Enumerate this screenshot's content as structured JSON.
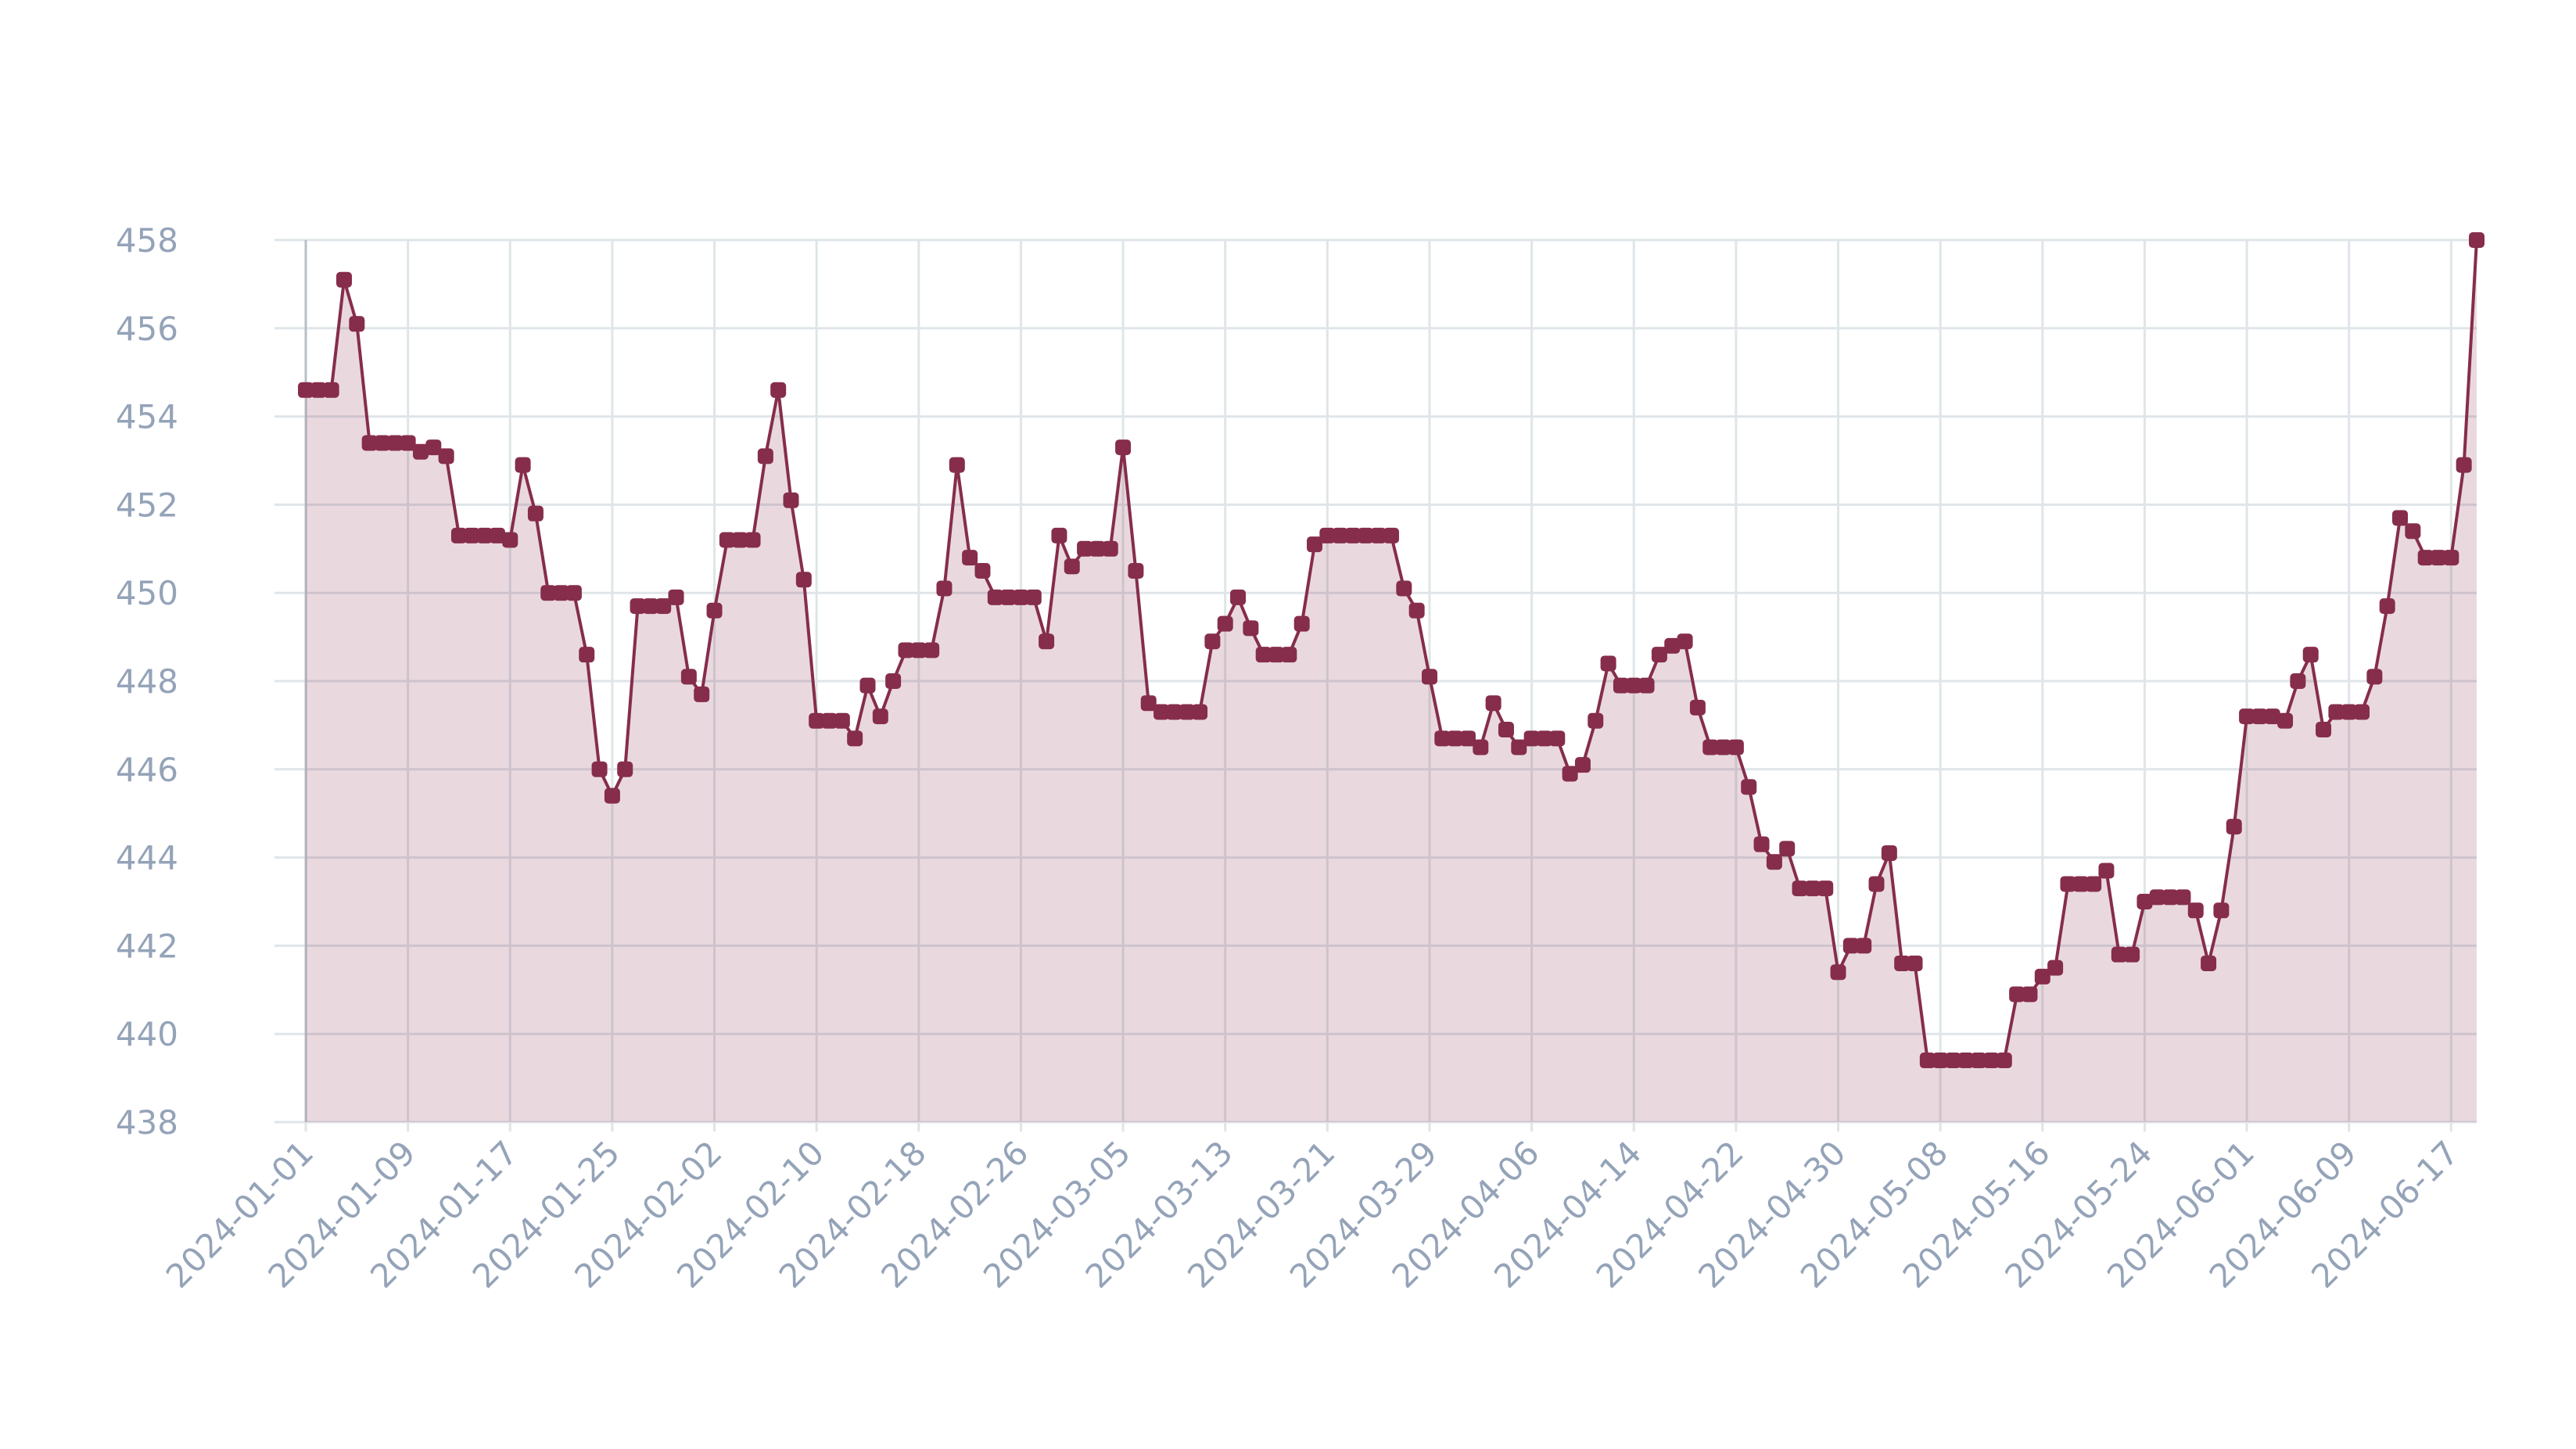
{
  "chart_data": {
    "type": "area",
    "grid": true,
    "x": [
      "2024-01-01",
      "2024-01-02",
      "2024-01-03",
      "2024-01-04",
      "2024-01-05",
      "2024-01-06",
      "2024-01-07",
      "2024-01-08",
      "2024-01-09",
      "2024-01-10",
      "2024-01-11",
      "2024-01-12",
      "2024-01-13",
      "2024-01-14",
      "2024-01-15",
      "2024-01-16",
      "2024-01-17",
      "2024-01-18",
      "2024-01-19",
      "2024-01-20",
      "2024-01-21",
      "2024-01-22",
      "2024-01-23",
      "2024-01-24",
      "2024-01-25",
      "2024-01-26",
      "2024-01-27",
      "2024-01-28",
      "2024-01-29",
      "2024-01-30",
      "2024-01-31",
      "2024-02-01",
      "2024-02-02",
      "2024-02-03",
      "2024-02-04",
      "2024-02-05",
      "2024-02-06",
      "2024-02-07",
      "2024-02-08",
      "2024-02-09",
      "2024-02-10",
      "2024-02-11",
      "2024-02-12",
      "2024-02-13",
      "2024-02-14",
      "2024-02-15",
      "2024-02-16",
      "2024-02-17",
      "2024-02-18",
      "2024-02-19",
      "2024-02-20",
      "2024-02-21",
      "2024-02-22",
      "2024-02-23",
      "2024-02-24",
      "2024-02-25",
      "2024-02-26",
      "2024-02-27",
      "2024-02-28",
      "2024-02-29",
      "2024-03-01",
      "2024-03-02",
      "2024-03-03",
      "2024-03-04",
      "2024-03-05",
      "2024-03-06",
      "2024-03-07",
      "2024-03-08",
      "2024-03-09",
      "2024-03-10",
      "2024-03-11",
      "2024-03-12",
      "2024-03-13",
      "2024-03-14",
      "2024-03-15",
      "2024-03-16",
      "2024-03-17",
      "2024-03-18",
      "2024-03-19",
      "2024-03-20",
      "2024-03-21",
      "2024-03-22",
      "2024-03-23",
      "2024-03-24",
      "2024-03-25",
      "2024-03-26",
      "2024-03-27",
      "2024-03-28",
      "2024-03-29",
      "2024-03-30",
      "2024-03-31",
      "2024-04-01",
      "2024-04-02",
      "2024-04-03",
      "2024-04-04",
      "2024-04-05",
      "2024-04-06",
      "2024-04-07",
      "2024-04-08",
      "2024-04-09",
      "2024-04-10",
      "2024-04-11",
      "2024-04-12",
      "2024-04-13",
      "2024-04-14",
      "2024-04-15",
      "2024-04-16",
      "2024-04-17",
      "2024-04-18",
      "2024-04-19",
      "2024-04-20",
      "2024-04-21",
      "2024-04-22",
      "2024-04-23",
      "2024-04-24",
      "2024-04-25",
      "2024-04-26",
      "2024-04-27",
      "2024-04-28",
      "2024-04-29",
      "2024-04-30",
      "2024-05-01",
      "2024-05-02",
      "2024-05-03",
      "2024-05-04",
      "2024-05-05",
      "2024-05-06",
      "2024-05-07",
      "2024-05-08",
      "2024-05-09",
      "2024-05-10",
      "2024-05-11",
      "2024-05-12",
      "2024-05-13",
      "2024-05-14",
      "2024-05-15",
      "2024-05-16",
      "2024-05-17",
      "2024-05-18",
      "2024-05-19",
      "2024-05-20",
      "2024-05-21",
      "2024-05-22",
      "2024-05-23",
      "2024-05-24",
      "2024-05-25",
      "2024-05-26",
      "2024-05-27",
      "2024-05-28",
      "2024-05-29",
      "2024-05-30",
      "2024-05-31",
      "2024-06-01",
      "2024-06-02",
      "2024-06-03",
      "2024-06-04",
      "2024-06-05",
      "2024-06-06",
      "2024-06-07",
      "2024-06-08",
      "2024-06-09",
      "2024-06-10",
      "2024-06-11",
      "2024-06-12",
      "2024-06-13",
      "2024-06-14",
      "2024-06-15",
      "2024-06-16",
      "2024-06-17",
      "2024-06-18",
      "2024-06-19"
    ],
    "series": [
      {
        "color": "#862d4b",
        "values": [
          454.6,
          454.6,
          454.6,
          457.1,
          456.1,
          453.4,
          453.4,
          453.4,
          453.4,
          453.2,
          453.3,
          453.1,
          451.3,
          451.3,
          451.3,
          451.3,
          451.2,
          452.9,
          451.8,
          450.0,
          450.0,
          450.0,
          448.6,
          446.0,
          445.4,
          446.0,
          449.7,
          449.7,
          449.7,
          449.9,
          448.1,
          447.7,
          449.6,
          451.2,
          451.2,
          451.2,
          453.1,
          454.6,
          452.1,
          450.3,
          447.1,
          447.1,
          447.1,
          446.7,
          447.9,
          447.2,
          448.0,
          448.7,
          448.7,
          448.7,
          450.1,
          452.9,
          450.8,
          450.5,
          449.9,
          449.9,
          449.9,
          449.9,
          448.9,
          451.3,
          450.6,
          451.0,
          451.0,
          451.0,
          453.3,
          450.5,
          447.5,
          447.3,
          447.3,
          447.3,
          447.3,
          448.9,
          449.3,
          449.9,
          449.2,
          448.6,
          448.6,
          448.6,
          449.3,
          451.1,
          451.3,
          451.3,
          451.3,
          451.3,
          451.3,
          451.3,
          450.1,
          449.6,
          448.1,
          446.7,
          446.7,
          446.7,
          446.5,
          447.5,
          446.9,
          446.5,
          446.7,
          446.7,
          446.7,
          445.9,
          446.1,
          447.1,
          448.4,
          447.9,
          447.9,
          447.9,
          448.6,
          448.8,
          448.9,
          447.4,
          446.5,
          446.5,
          446.5,
          445.6,
          444.3,
          443.9,
          444.2,
          443.3,
          443.3,
          443.3,
          441.4,
          442.0,
          442.0,
          443.4,
          444.1,
          441.6,
          441.6,
          439.4,
          439.4,
          439.4,
          439.4,
          439.4,
          439.4,
          439.4,
          440.9,
          440.9,
          441.3,
          441.5,
          443.4,
          443.4,
          443.4,
          443.7,
          441.8,
          441.8,
          443.0,
          443.1,
          443.1,
          443.1,
          442.8,
          441.6,
          442.8,
          444.7,
          447.2,
          447.2,
          447.2,
          447.1,
          448.0,
          448.6,
          446.9,
          447.3,
          447.3,
          447.3,
          448.1,
          449.7,
          451.7,
          451.4,
          450.8,
          450.8,
          450.8,
          452.9,
          458.0
        ]
      }
    ],
    "xlim": [
      "2024-01-01",
      "2024-06-19"
    ],
    "xticks": [
      "2024-01-01",
      "2024-01-09",
      "2024-01-17",
      "2024-01-25",
      "2024-02-02",
      "2024-02-10",
      "2024-02-18",
      "2024-02-26",
      "2024-03-05",
      "2024-03-13",
      "2024-03-21",
      "2024-03-29",
      "2024-04-06",
      "2024-04-14",
      "2024-04-22",
      "2024-04-30",
      "2024-05-08",
      "2024-05-16",
      "2024-05-24",
      "2024-06-01",
      "2024-06-09",
      "2024-06-17"
    ],
    "ylim": [
      438,
      458
    ],
    "yticks": [
      438,
      440,
      442,
      444,
      446,
      448,
      450,
      452,
      454,
      456,
      458
    ]
  }
}
